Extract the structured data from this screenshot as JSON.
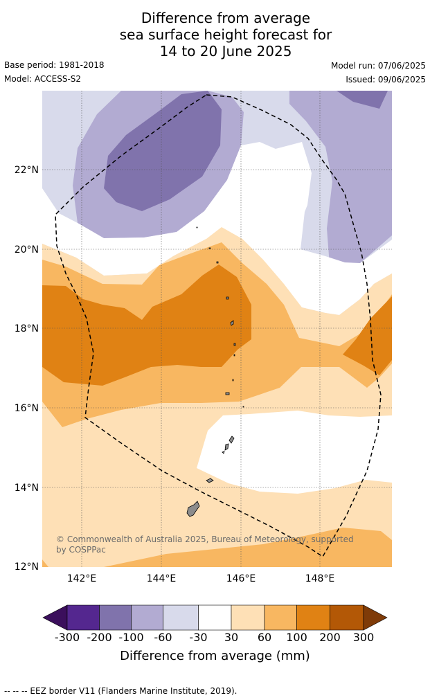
{
  "title": {
    "line1": "Difference from average",
    "line2": "sea surface height forecast for",
    "line3": "14 to 20 June 2025"
  },
  "meta": {
    "base_period": "Base period: 1981-2018",
    "model": "Model: ACCESS-S2",
    "model_run": "Model run: 07/06/2025",
    "issued": "Issued: 09/06/2025"
  },
  "map": {
    "extent": {
      "lon_min": 141.0,
      "lon_max": 149.8,
      "lat_min": 12.0,
      "lat_max": 24.0
    },
    "lon_ticks": [
      {
        "value": 142,
        "label": "142°E"
      },
      {
        "value": 144,
        "label": "144°E"
      },
      {
        "value": 146,
        "label": "146°E"
      },
      {
        "value": 148,
        "label": "148°E"
      }
    ],
    "lat_ticks": [
      {
        "value": 22,
        "label": "22°N"
      },
      {
        "value": 20,
        "label": "20°N"
      },
      {
        "value": 18,
        "label": "18°N"
      },
      {
        "value": 16,
        "label": "16°N"
      },
      {
        "value": 14,
        "label": "14°N"
      },
      {
        "value": 12,
        "label": "12°N"
      }
    ],
    "gridlines": true,
    "copyright": {
      "line1": "© Commonwealth of Australia 2025, Bureau of Meteorology, supported",
      "line2": "by COSPPac"
    }
  },
  "colorbar": {
    "title": "Difference from average (mm)",
    "labels": [
      "-300",
      "-200",
      "-100",
      "-60",
      "-30",
      "30",
      "60",
      "100",
      "200",
      "300"
    ],
    "colors": [
      "#3b0f5c",
      "#54278f",
      "#8073ac",
      "#b2abd2",
      "#d8daeb",
      "#ffffff",
      "#fee0b6",
      "#f8b761",
      "#e08214",
      "#b35806",
      "#7f3b08"
    ]
  },
  "footer": "--  --  -- EEZ border V11 (Flanders Marine Institute, 2019)."
}
